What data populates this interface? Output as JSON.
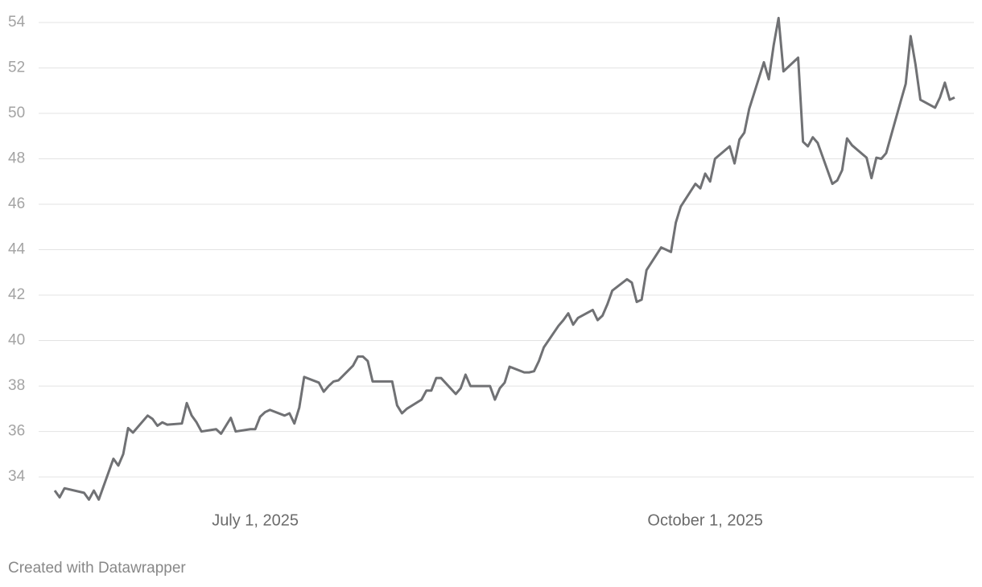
{
  "chart_data": {
    "type": "line",
    "x": [
      "2025-05-21",
      "2025-05-22",
      "2025-05-23",
      "2025-05-27",
      "2025-05-28",
      "2025-05-29",
      "2025-05-30",
      "2025-06-02",
      "2025-06-03",
      "2025-06-04",
      "2025-06-05",
      "2025-06-06",
      "2025-06-09",
      "2025-06-10",
      "2025-06-11",
      "2025-06-12",
      "2025-06-13",
      "2025-06-16",
      "2025-06-17",
      "2025-06-18",
      "2025-06-19",
      "2025-06-20",
      "2025-06-23",
      "2025-06-24",
      "2025-06-25",
      "2025-06-26",
      "2025-06-27",
      "2025-06-30",
      "2025-07-01",
      "2025-07-02",
      "2025-07-03",
      "2025-07-04",
      "2025-07-07",
      "2025-07-08",
      "2025-07-09",
      "2025-07-10",
      "2025-07-11",
      "2025-07-14",
      "2025-07-15",
      "2025-07-16",
      "2025-07-17",
      "2025-07-18",
      "2025-07-21",
      "2025-07-22",
      "2025-07-23",
      "2025-07-24",
      "2025-07-25",
      "2025-07-28",
      "2025-07-29",
      "2025-07-30",
      "2025-07-31",
      "2025-08-01",
      "2025-08-04",
      "2025-08-05",
      "2025-08-06",
      "2025-08-07",
      "2025-08-08",
      "2025-08-11",
      "2025-08-12",
      "2025-08-13",
      "2025-08-14",
      "2025-08-15",
      "2025-08-18",
      "2025-08-19",
      "2025-08-20",
      "2025-08-21",
      "2025-08-22",
      "2025-08-25",
      "2025-08-26",
      "2025-08-27",
      "2025-08-28",
      "2025-08-29",
      "2025-09-01",
      "2025-09-02",
      "2025-09-03",
      "2025-09-04",
      "2025-09-05",
      "2025-09-08",
      "2025-09-09",
      "2025-09-10",
      "2025-09-11",
      "2025-09-12",
      "2025-09-15",
      "2025-09-16",
      "2025-09-17",
      "2025-09-18",
      "2025-09-19",
      "2025-09-22",
      "2025-09-23",
      "2025-09-24",
      "2025-09-25",
      "2025-09-26",
      "2025-09-29",
      "2025-09-30",
      "2025-10-01",
      "2025-10-02",
      "2025-10-03",
      "2025-10-06",
      "2025-10-07",
      "2025-10-08",
      "2025-10-09",
      "2025-10-10",
      "2025-10-13",
      "2025-10-14",
      "2025-10-15",
      "2025-10-16",
      "2025-10-17",
      "2025-10-20",
      "2025-10-21",
      "2025-10-22",
      "2025-10-23",
      "2025-10-24",
      "2025-10-27",
      "2025-10-28",
      "2025-10-29",
      "2025-10-30",
      "2025-10-31",
      "2025-11-03",
      "2025-11-04",
      "2025-11-05",
      "2025-11-06",
      "2025-11-07",
      "2025-11-10",
      "2025-11-11",
      "2025-11-12",
      "2025-11-13",
      "2025-11-14",
      "2025-11-17",
      "2025-11-18",
      "2025-11-19",
      "2025-11-20",
      "2025-11-21"
    ],
    "series": [
      {
        "color": "#707174",
        "values": [
          33.4,
          33.1,
          33.5,
          33.3,
          33.0,
          33.4,
          33.0,
          34.8,
          34.5,
          35.0,
          36.15,
          35.95,
          36.7,
          36.55,
          36.25,
          36.4,
          36.3,
          36.35,
          37.25,
          36.7,
          36.4,
          36.0,
          36.1,
          35.9,
          36.25,
          36.6,
          36.0,
          36.1,
          36.1,
          36.65,
          36.85,
          36.95,
          36.7,
          36.8,
          36.35,
          37.05,
          38.4,
          38.15,
          37.75,
          38.0,
          38.2,
          38.25,
          38.9,
          39.3,
          39.3,
          39.1,
          38.2,
          38.2,
          38.2,
          37.15,
          36.8,
          37.0,
          37.4,
          37.8,
          37.8,
          38.35,
          38.35,
          37.65,
          37.9,
          38.5,
          38.0,
          38.0,
          38.0,
          37.4,
          37.9,
          38.15,
          38.85,
          38.6,
          38.6,
          38.65,
          39.1,
          39.7,
          40.65,
          40.9,
          41.2,
          40.7,
          41.0,
          41.35,
          40.9,
          41.1,
          41.6,
          42.2,
          42.7,
          42.55,
          41.7,
          41.8,
          43.1,
          44.1,
          44.0,
          43.9,
          45.2,
          45.9,
          46.9,
          46.7,
          47.35,
          47.0,
          48.0,
          48.55,
          47.8,
          48.85,
          49.15,
          50.2,
          52.25,
          51.5,
          53.0,
          54.2,
          51.85,
          52.45,
          48.75,
          48.55,
          48.95,
          48.7,
          46.9,
          47.05,
          47.5,
          48.9,
          48.6,
          48.05,
          47.15,
          48.05,
          48.0,
          48.25,
          50.55,
          51.3,
          53.4,
          52.15,
          50.6,
          50.25,
          50.7,
          51.35,
          50.6,
          50.7
        ]
      }
    ],
    "xlim": [
      "2025-05-21",
      "2025-11-21"
    ],
    "xticks": [
      {
        "value": "2025-07-01",
        "label": "July 1, 2025"
      },
      {
        "value": "2025-10-01",
        "label": "October 1, 2025"
      }
    ],
    "ylim": [
      32.8,
      54.3
    ],
    "yticks": [
      34,
      36,
      38,
      40,
      42,
      44,
      46,
      48,
      50,
      52,
      54
    ],
    "grid": true,
    "credit": "Created with Datawrapper"
  }
}
